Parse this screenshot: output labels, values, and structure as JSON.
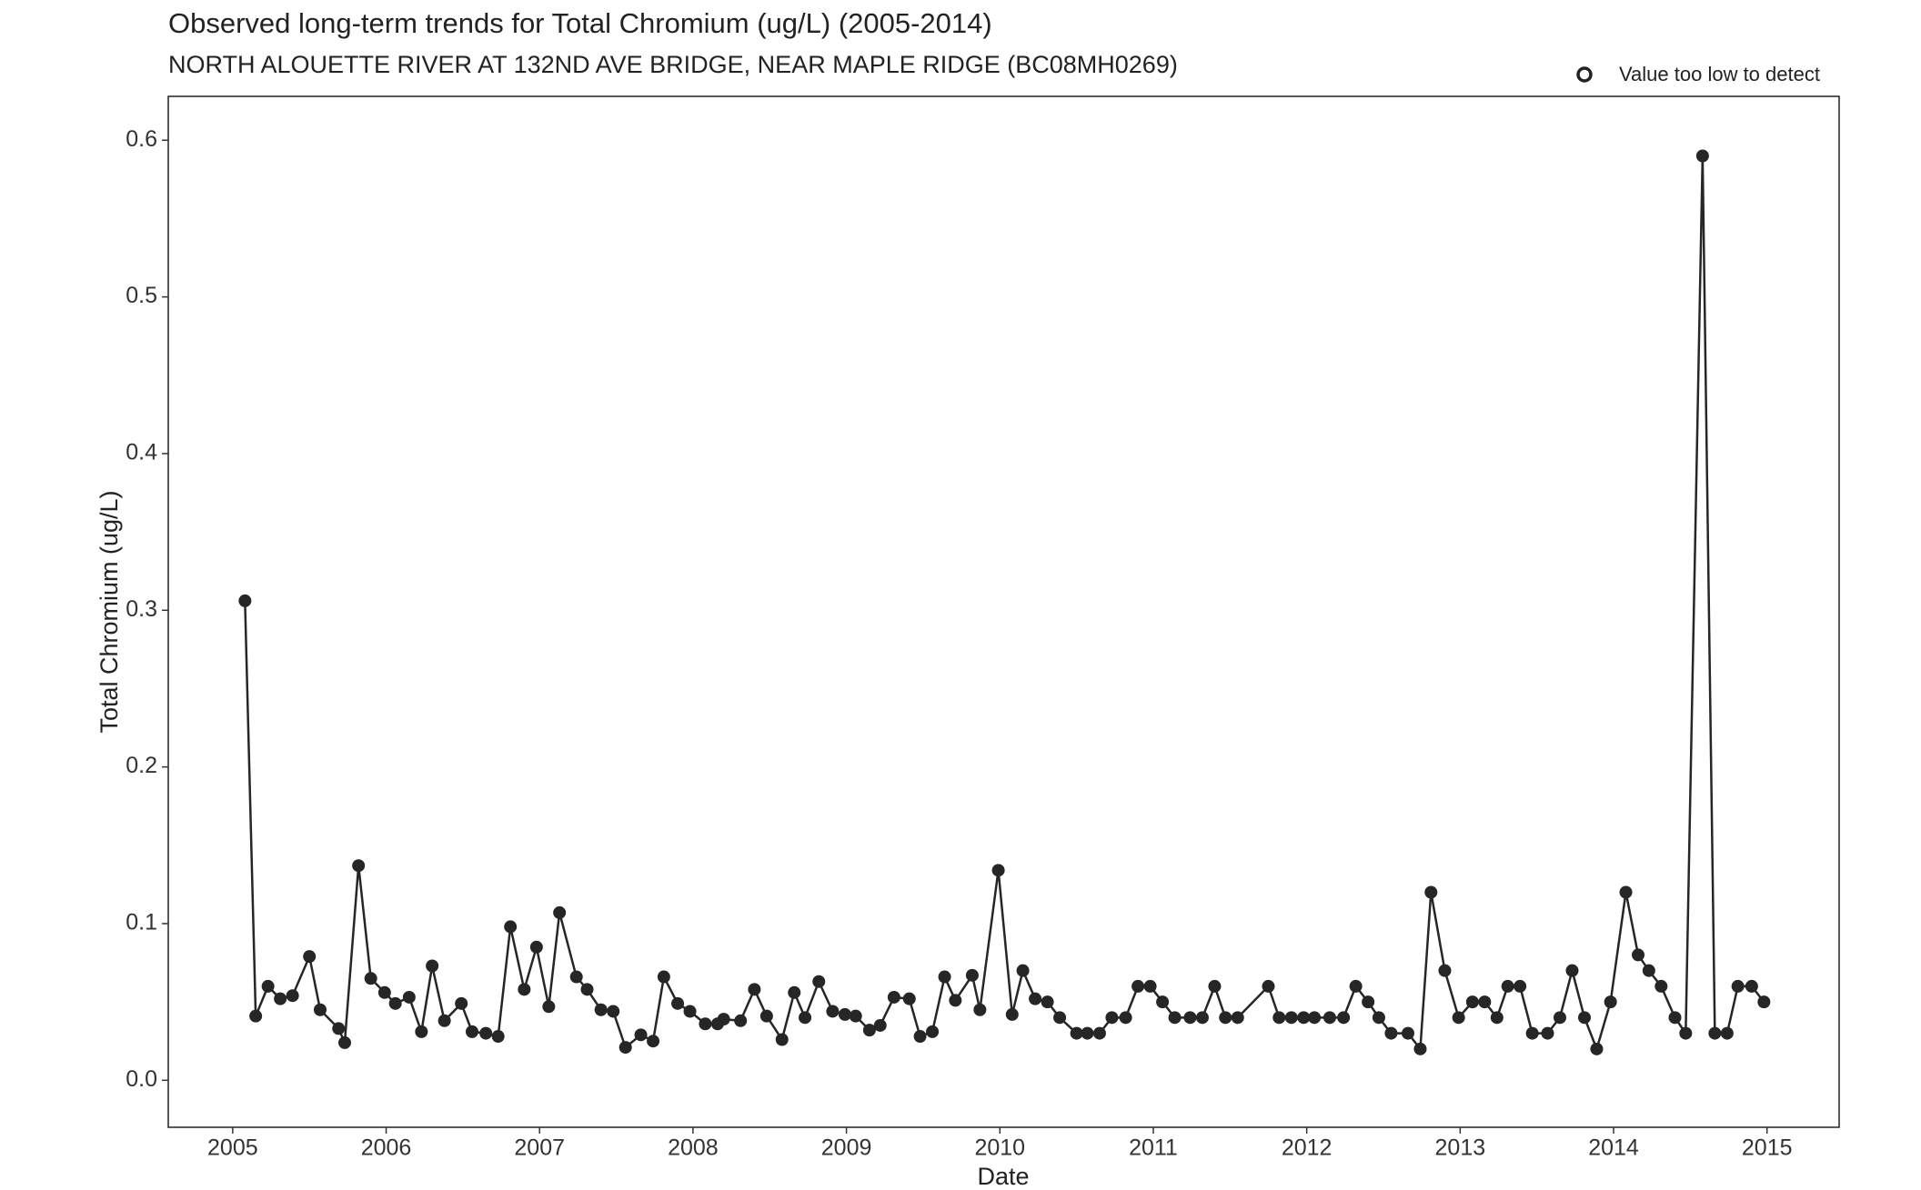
{
  "chart_data": {
    "type": "line",
    "title": "Observed long-term trends for Total Chromium (ug/L) (2005-2014)",
    "subtitle": "NORTH ALOUETTE RIVER AT 132ND AVE BRIDGE, NEAR MAPLE RIDGE (BC08MH0269)",
    "x_label": "Date",
    "y_label": "Total Chromium (ug/L)",
    "legend": {
      "label": "Value too low to detect",
      "position": "top-right"
    },
    "xlim": [
      2004.58,
      2015.47
    ],
    "ylim": [
      -0.03,
      0.628
    ],
    "xticks": [
      2005,
      2006,
      2007,
      2008,
      2009,
      2010,
      2011,
      2012,
      2013,
      2014,
      2015
    ],
    "yticks": [
      {
        "value": 0,
        "label": "0.0"
      },
      0.1,
      0.2,
      0.3,
      0.4,
      0.5,
      0.6
    ],
    "grid": false,
    "series": [
      {
        "color": "#262626",
        "x": [
          2005.08,
          2005.15,
          2005.23,
          2005.31,
          2005.39,
          2005.5,
          2005.57,
          2005.69,
          2005.73,
          2005.82,
          2005.9,
          2005.99,
          2006.06,
          2006.15,
          2006.23,
          2006.3,
          2006.38,
          2006.49,
          2006.56,
          2006.65,
          2006.73,
          2006.81,
          2006.9,
          2006.98,
          2007.06,
          2007.13,
          2007.24,
          2007.31,
          2007.4,
          2007.48,
          2007.56,
          2007.66,
          2007.74,
          2007.81,
          2007.9,
          2007.98,
          2008.08,
          2008.16,
          2008.2,
          2008.31,
          2008.4,
          2008.48,
          2008.58,
          2008.66,
          2008.73,
          2008.82,
          2008.91,
          2008.99,
          2009.06,
          2009.15,
          2009.22,
          2009.31,
          2009.41,
          2009.48,
          2009.56,
          2009.64,
          2009.71,
          2009.82,
          2009.87,
          2009.99,
          2010.08,
          2010.15,
          2010.23,
          2010.31,
          2010.39,
          2010.5,
          2010.57,
          2010.65,
          2010.73,
          2010.82,
          2010.9,
          2010.98,
          2011.06,
          2011.14,
          2011.24,
          2011.32,
          2011.4,
          2011.47,
          2011.55,
          2011.75,
          2011.82,
          2011.9,
          2011.98,
          2012.05,
          2012.15,
          2012.24,
          2012.32,
          2012.4,
          2012.47,
          2012.55,
          2012.66,
          2012.74,
          2012.81,
          2012.9,
          2012.99,
          2013.08,
          2013.16,
          2013.24,
          2013.31,
          2013.39,
          2013.47,
          2013.57,
          2013.65,
          2013.73,
          2013.81,
          2013.89,
          2013.98,
          2014.08,
          2014.16,
          2014.23,
          2014.31,
          2014.4,
          2014.47,
          2014.58,
          2014.66,
          2014.74,
          2014.81,
          2014.9,
          2014.98
        ],
        "values": [
          0.306,
          0.041,
          0.06,
          0.052,
          0.054,
          0.079,
          0.045,
          0.033,
          0.024,
          0.137,
          0.065,
          0.056,
          0.049,
          0.053,
          0.031,
          0.073,
          0.038,
          0.049,
          0.031,
          0.03,
          0.028,
          0.098,
          0.058,
          0.085,
          0.047,
          0.107,
          0.066,
          0.058,
          0.045,
          0.044,
          0.021,
          0.029,
          0.025,
          0.066,
          0.049,
          0.044,
          0.036,
          0.036,
          0.039,
          0.038,
          0.058,
          0.041,
          0.026,
          0.056,
          0.04,
          0.063,
          0.044,
          0.042,
          0.041,
          0.032,
          0.035,
          0.053,
          0.052,
          0.028,
          0.031,
          0.066,
          0.051,
          0.067,
          0.045,
          0.134,
          0.042,
          0.07,
          0.052,
          0.05,
          0.04,
          0.03,
          0.03,
          0.03,
          0.04,
          0.04,
          0.06,
          0.06,
          0.05,
          0.04,
          0.04,
          0.04,
          0.06,
          0.04,
          0.04,
          0.06,
          0.04,
          0.04,
          0.04,
          0.04,
          0.04,
          0.04,
          0.06,
          0.05,
          0.04,
          0.03,
          0.03,
          0.02,
          0.12,
          0.07,
          0.04,
          0.05,
          0.05,
          0.04,
          0.06,
          0.06,
          0.03,
          0.03,
          0.04,
          0.07,
          0.04,
          0.02,
          0.05,
          0.12,
          0.08,
          0.07,
          0.06,
          0.04,
          0.03,
          0.59,
          0.03,
          0.03,
          0.06,
          0.06,
          0.05
        ]
      }
    ]
  }
}
